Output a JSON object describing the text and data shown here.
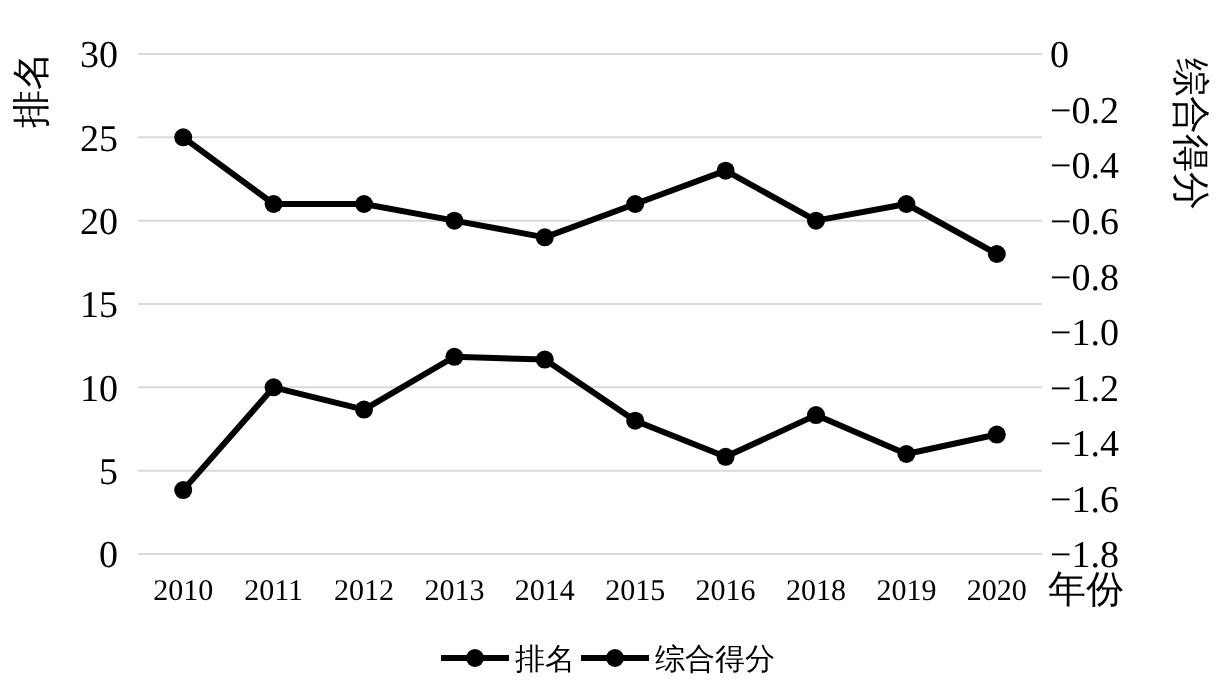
{
  "chart_data": {
    "type": "line",
    "ylabel": "排名",
    "y2label": "综合得分",
    "xlabel": "年份",
    "categories": [
      "2010",
      "2011",
      "2012",
      "2013",
      "2014",
      "2015",
      "2016",
      "2018",
      "2019",
      "2020"
    ],
    "series": [
      {
        "name": "排名",
        "color": "#000000",
        "values": [
          25,
          21,
          21,
          20,
          19,
          21,
          23,
          20,
          21,
          18
        ]
      },
      {
        "name": "综合得分",
        "color": "#000000",
        "axis": "y2",
        "values": [
          -1.57,
          -1.2,
          -1.28,
          -1.09,
          -1.1,
          -1.32,
          -1.45,
          -1.3,
          -1.44,
          -1.37
        ]
      }
    ],
    "ylim": [
      0,
      30
    ],
    "yticks": [
      0,
      5,
      10,
      15,
      20,
      25,
      30
    ],
    "y2lim": [
      -1.8,
      0
    ],
    "y2ticks": [
      {
        "value": -1.8,
        "label": "−1.8"
      },
      {
        "value": -1.6,
        "label": "−1.6"
      },
      {
        "value": -1.4,
        "label": "−1.4"
      },
      {
        "value": -1.2,
        "label": "−1.2"
      },
      {
        "value": -1.0,
        "label": "−1.0"
      },
      {
        "value": -0.8,
        "label": "−0.8"
      },
      {
        "value": -0.6,
        "label": "−0.6"
      },
      {
        "value": -0.4,
        "label": "−0.4"
      },
      {
        "value": -0.2,
        "label": "−0.2"
      },
      0
    ],
    "grid": "y",
    "legend": "bottom",
    "marker": "circle",
    "line_style": "solid"
  }
}
